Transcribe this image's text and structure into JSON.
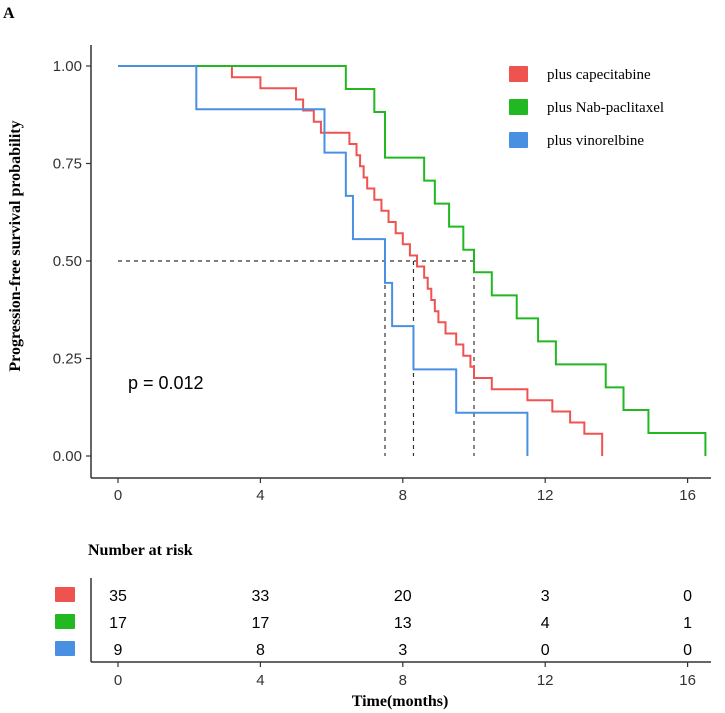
{
  "panel_label": "A",
  "chart_data": {
    "type": "line",
    "subtype": "kaplan-meier",
    "title": "",
    "xlabel": "Time(months)",
    "ylabel": "Progression-free survival probability",
    "xlim": [
      -0.5,
      16.6
    ],
    "ylim": [
      -0.05,
      1.05
    ],
    "xticks": [
      0,
      4,
      8,
      12,
      16
    ],
    "yticks": [
      0.0,
      0.25,
      0.5,
      0.75,
      1.0
    ],
    "ytick_labels": [
      "0.00",
      "0.25",
      "0.50",
      "0.75",
      "1.00"
    ],
    "xtick_labels": [
      "0",
      "4",
      "8",
      "12",
      "16"
    ],
    "legend_position": "top-right",
    "grid": false,
    "annotation": "p = 0.012",
    "median_lines": {
      "y": 0.5,
      "x": [
        7.5,
        8.3,
        10.0
      ]
    },
    "series": [
      {
        "name": "plus capecitabine",
        "color": "#ef5350",
        "steps": [
          [
            0,
            1.0
          ],
          [
            3.2,
            0.971
          ],
          [
            4.0,
            0.943
          ],
          [
            5.0,
            0.914
          ],
          [
            5.2,
            0.886
          ],
          [
            5.5,
            0.857
          ],
          [
            5.7,
            0.829
          ],
          [
            6.5,
            0.8
          ],
          [
            6.7,
            0.771
          ],
          [
            6.8,
            0.743
          ],
          [
            6.9,
            0.714
          ],
          [
            7.0,
            0.686
          ],
          [
            7.2,
            0.657
          ],
          [
            7.4,
            0.629
          ],
          [
            7.6,
            0.6
          ],
          [
            7.8,
            0.571
          ],
          [
            8.0,
            0.543
          ],
          [
            8.2,
            0.514
          ],
          [
            8.4,
            0.486
          ],
          [
            8.6,
            0.457
          ],
          [
            8.7,
            0.429
          ],
          [
            8.8,
            0.4
          ],
          [
            8.9,
            0.371
          ],
          [
            9.0,
            0.343
          ],
          [
            9.2,
            0.314
          ],
          [
            9.5,
            0.286
          ],
          [
            9.7,
            0.257
          ],
          [
            9.9,
            0.229
          ],
          [
            10.0,
            0.2
          ],
          [
            10.5,
            0.171
          ],
          [
            11.5,
            0.143
          ],
          [
            12.2,
            0.114
          ],
          [
            12.7,
            0.086
          ],
          [
            13.1,
            0.057
          ],
          [
            13.6,
            0.029
          ],
          [
            13.6,
            0.0
          ]
        ]
      },
      {
        "name": "plus Nab-paclitaxel",
        "color": "#22b822",
        "steps": [
          [
            0,
            1.0
          ],
          [
            6.4,
            0.941
          ],
          [
            7.2,
            0.882
          ],
          [
            7.5,
            0.765
          ],
          [
            8.6,
            0.706
          ],
          [
            8.9,
            0.647
          ],
          [
            9.3,
            0.588
          ],
          [
            9.7,
            0.529
          ],
          [
            10.0,
            0.471
          ],
          [
            10.5,
            0.412
          ],
          [
            11.2,
            0.353
          ],
          [
            11.8,
            0.294
          ],
          [
            12.3,
            0.235
          ],
          [
            13.7,
            0.176
          ],
          [
            14.2,
            0.118
          ],
          [
            14.9,
            0.059
          ],
          [
            16.5,
            0.0
          ]
        ]
      },
      {
        "name": "plus vinorelbine",
        "color": "#4a90e2",
        "steps": [
          [
            0,
            1.0
          ],
          [
            2.2,
            0.889
          ],
          [
            5.8,
            0.778
          ],
          [
            6.4,
            0.667
          ],
          [
            6.6,
            0.556
          ],
          [
            7.5,
            0.444
          ],
          [
            7.7,
            0.333
          ],
          [
            8.3,
            0.222
          ],
          [
            9.5,
            0.111
          ],
          [
            11.5,
            0.0
          ]
        ]
      }
    ]
  },
  "risk_table": {
    "title": "Number at risk",
    "xticks": [
      0,
      4,
      8,
      12,
      16
    ],
    "xtick_labels": [
      "0",
      "4",
      "8",
      "12",
      "16"
    ],
    "xlabel": "Time(months)",
    "rows": [
      {
        "color": "#ef5350",
        "values": [
          "35",
          "33",
          "20",
          "3",
          "0"
        ]
      },
      {
        "color": "#22b822",
        "values": [
          "17",
          "17",
          "13",
          "4",
          "1"
        ]
      },
      {
        "color": "#4a90e2",
        "values": [
          "9",
          "8",
          "3",
          "0",
          "0"
        ]
      }
    ]
  }
}
